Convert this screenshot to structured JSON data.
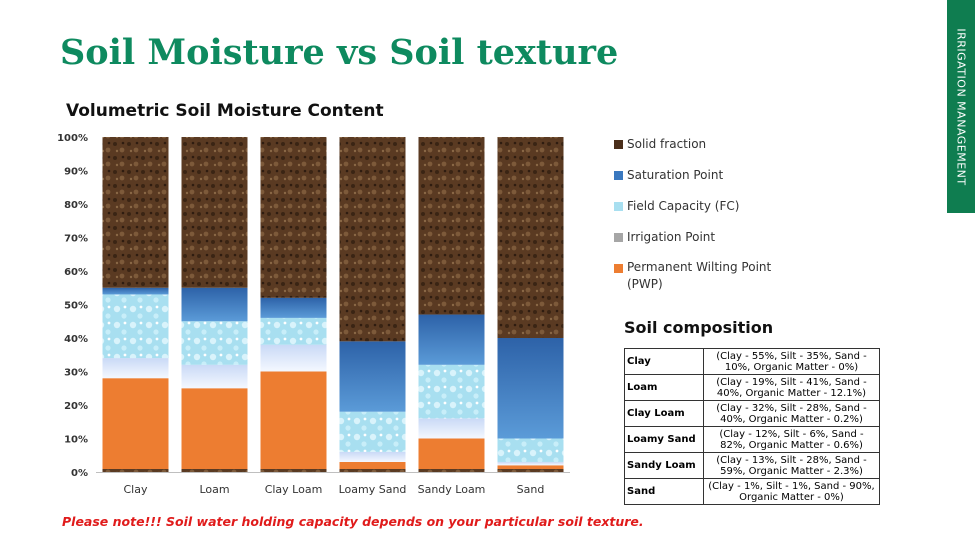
{
  "slide": {
    "title": "Soil Moisture vs Soil texture",
    "side_tab": "IRRIGATION MANAGEMENT"
  },
  "note": "Please note!!! Soil water holding capacity depends on your particular soil texture.",
  "colors": {
    "solid_fraction": "#5a3a22",
    "saturation_point": "#3a78bf",
    "field_capacity": "#a8dff0",
    "irrigation_point": "#dde8fb",
    "pwp": "#ed7d31"
  },
  "chart_data": {
    "type": "bar",
    "stacked": true,
    "title": "Volumetric Soil Moisture Content",
    "categories": [
      "Clay",
      "Loam",
      "Clay Loam",
      "Loamy Sand",
      "Sandy Loam",
      "Sand"
    ],
    "y_ticks": [
      "0%",
      "10%",
      "20%",
      "30%",
      "40%",
      "50%",
      "60%",
      "70%",
      "80%",
      "90%",
      "100%"
    ],
    "ylim": [
      0,
      100
    ],
    "legend_position": "right",
    "series": [
      {
        "name": "Permanent Wilting Point (PWP)",
        "key": "pwp",
        "values": [
          28,
          25,
          30,
          3,
          10,
          2
        ]
      },
      {
        "name": "Irrigation Point",
        "key": "irrigation_point",
        "values": [
          6,
          7,
          8,
          3,
          6,
          1
        ]
      },
      {
        "name": "Field Capacity (FC)",
        "key": "field_capacity",
        "values": [
          19,
          13,
          8,
          12,
          16,
          7
        ]
      },
      {
        "name": "Saturation Point",
        "key": "saturation_point",
        "values": [
          2,
          10,
          6,
          21,
          15,
          30
        ]
      },
      {
        "name": "Solid fraction",
        "key": "solid_fraction",
        "values": [
          45,
          45,
          48,
          61,
          53,
          60
        ]
      }
    ],
    "legend": [
      {
        "label": "Solid fraction",
        "key": "solid_fraction"
      },
      {
        "label": "Saturation Point",
        "key": "saturation_point"
      },
      {
        "label": "Field Capacity (FC)",
        "key": "field_capacity"
      },
      {
        "label": "Irrigation Point",
        "key": "irrigation_point"
      },
      {
        "label": "Permanent Wilting Point (PWP)",
        "key": "pwp"
      }
    ]
  },
  "composition": {
    "title": "Soil composition",
    "rows": [
      {
        "name": "Clay",
        "desc": "(Clay - 55%, Silt - 35%, Sand - 10%, Organic Matter - 0%)"
      },
      {
        "name": "Loam",
        "desc": "(Clay - 19%, Silt - 41%, Sand - 40%, Organic Matter - 12.1%)"
      },
      {
        "name": "Clay Loam",
        "desc": "(Clay - 32%, Silt - 28%, Sand - 40%, Organic Matter - 0.2%)"
      },
      {
        "name": "Loamy Sand",
        "desc": "(Clay - 12%, Silt - 6%, Sand - 82%, Organic Matter - 0.6%)"
      },
      {
        "name": "Sandy Loam",
        "desc": "(Clay - 13%, Silt - 28%, Sand - 59%, Organic Matter - 2.3%)"
      },
      {
        "name": "Sand",
        "desc": "(Clay - 1%, Silt - 1%, Sand - 90%, Organic Matter - 0%)"
      }
    ]
  }
}
